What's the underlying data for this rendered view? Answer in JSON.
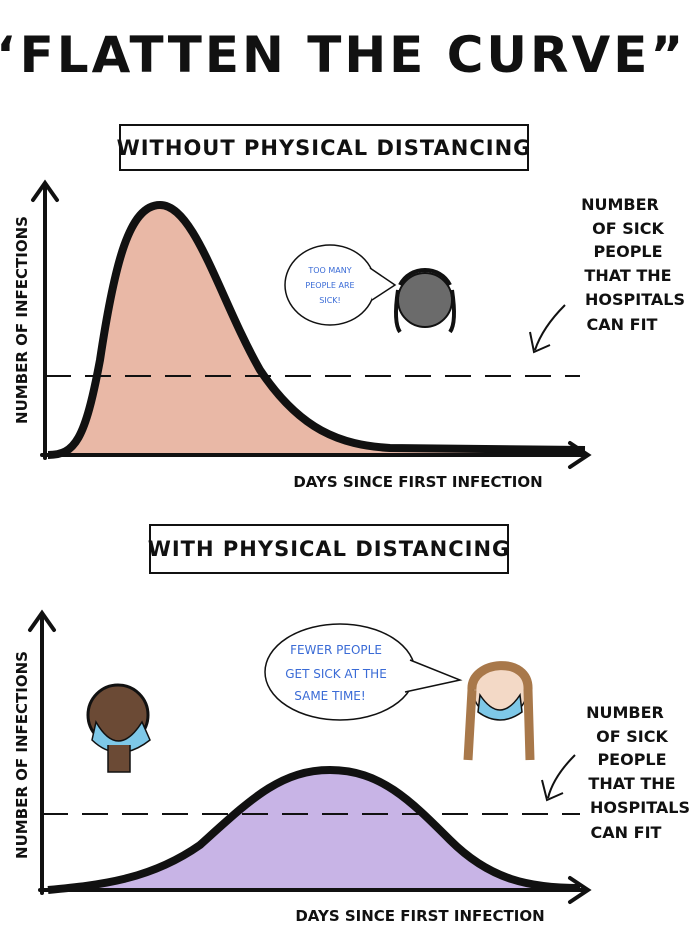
{
  "title": "“FLATTEN THE CURVE”",
  "panels": [
    {
      "heading": "WITHOUT PHYSICAL DISTANCING",
      "y_label": "NUMBER OF INFECTIONS",
      "x_label": "DAYS SINCE FIRST INFECTION",
      "speech": [
        "TOO MANY",
        "PEOPLE ARE",
        "SICK!"
      ],
      "capacity_note": [
        "NUMBER",
        "OF SICK",
        "PEOPLE",
        "THAT THE",
        "HOSPITALS",
        "CAN FIT"
      ]
    },
    {
      "heading": "WITH PHYSICAL DISTANCING",
      "y_label": "NUMBER OF INFECTIONS",
      "x_label": "DAYS SINCE FIRST INFECTION",
      "speech": [
        "FEWER PEOPLE",
        "GET SICK AT THE",
        "SAME TIME!"
      ],
      "capacity_note": [
        "NUMBER",
        "OF SICK",
        "PEOPLE",
        "THAT THE",
        "HOSPITALS",
        "CAN FIT"
      ]
    }
  ]
}
